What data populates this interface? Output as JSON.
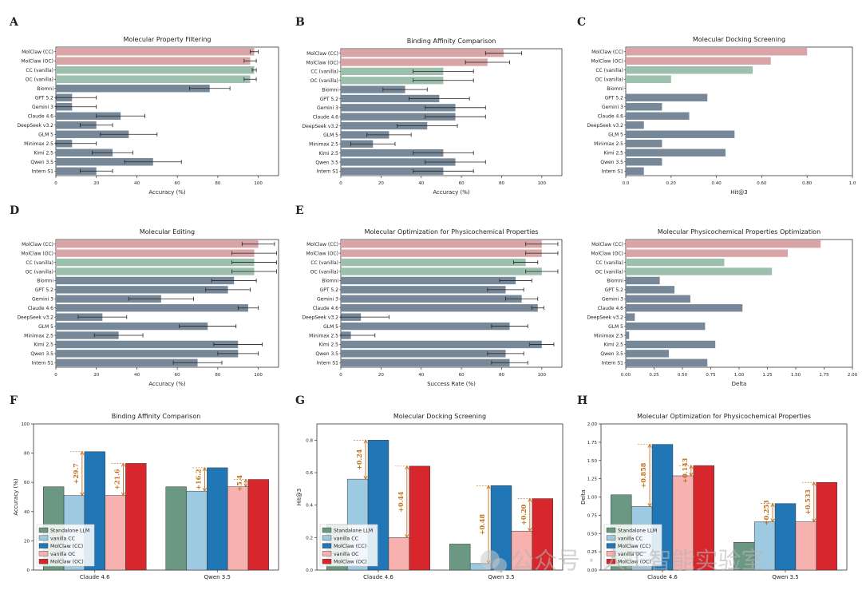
{
  "colors": {
    "mol": "#d8a4a6",
    "vanilla": "#9dbfad",
    "other": "#778899",
    "err": "#222222",
    "standalone": "#6b9882",
    "vanilla_cc": "#9ecae1",
    "molclaw_cc": "#2176b6",
    "vanilla_oc": "#f7b2b0",
    "molclaw_oc": "#d7262c",
    "ann": "#c2711a"
  },
  "icons": [
    "wechat-icon"
  ],
  "watermark": "公众号 · 人工智能实验室",
  "chart_data": [
    {
      "panel": "A",
      "type": "bar",
      "title": "Molecular Property Filtering",
      "xlabel": "Accuracy (%)",
      "xlim": [
        0,
        110
      ],
      "xticks": [
        0,
        20,
        40,
        60,
        80,
        100
      ],
      "categories": [
        "MolClaw (CC)",
        "MolClaw (OC)",
        "CC (vanilla)",
        "OC (vanilla)",
        "Biomni",
        "GPT 5.2",
        "Gemini 3",
        "Claude 4.6",
        "DeepSeek v3.2",
        "GLM 5",
        "Minimax 2.5",
        "Kimi 2.5",
        "Qwen 3.5",
        "Intern S1"
      ],
      "values": [
        98,
        96,
        98,
        96,
        76,
        8,
        8,
        32,
        20,
        36,
        8,
        28,
        48,
        20
      ],
      "errors": [
        2,
        3,
        1,
        3,
        10,
        12,
        12,
        12,
        8,
        14,
        12,
        10,
        14,
        8
      ]
    },
    {
      "panel": "B",
      "type": "bar",
      "title": "Binding Affinity Comparison",
      "xlabel": "Accuracy (%)",
      "xlim": [
        0,
        110
      ],
      "xticks": [
        0,
        20,
        40,
        60,
        80,
        100
      ],
      "categories": [
        "MolClaw (CC)",
        "MolClaw (OC)",
        "CC (vanilla)",
        "OC (vanilla)",
        "Biomni",
        "GPT 5.2",
        "Gemini 3",
        "Claude 4.6",
        "DeepSeek v3.2",
        "GLM 5",
        "Minimax 2.5",
        "Kimi 2.5",
        "Qwen 3.5",
        "Intern S1"
      ],
      "values": [
        81,
        73,
        51,
        51,
        32,
        49,
        57,
        57,
        43,
        24,
        16,
        51,
        57,
        51
      ],
      "errors": [
        9,
        11,
        15,
        15,
        11,
        15,
        15,
        15,
        15,
        11,
        11,
        15,
        15,
        15
      ]
    },
    {
      "panel": "C",
      "type": "bar",
      "title": "Molecular Docking Screening",
      "xlabel": "Hit@3",
      "xlim": [
        0,
        1
      ],
      "xticks": [
        0.0,
        0.2,
        0.4,
        0.6,
        0.8,
        1.0
      ],
      "categories": [
        "MolClaw (CC)",
        "MolClaw (OC)",
        "CC (vanilla)",
        "OC (vanilla)",
        "Biomni",
        "GPT 5.2",
        "Gemini 3",
        "Claude 4.6",
        "DeepSeek v3.2",
        "GLM 5",
        "Minimax 2.5",
        "Kimi 2.5",
        "Qwen 3.5",
        "Intern S1"
      ],
      "values": [
        0.8,
        0.64,
        0.56,
        0.2,
        0,
        0.36,
        0.16,
        0.28,
        0.08,
        0.48,
        0.16,
        0.44,
        0.16,
        0.08
      ],
      "errors": null
    },
    {
      "panel": "D",
      "type": "bar",
      "title": "Molecular Editing",
      "xlabel": "Accuracy (%)",
      "xlim": [
        0,
        110
      ],
      "xticks": [
        0,
        20,
        40,
        60,
        80,
        100
      ],
      "categories": [
        "MolClaw (CC)",
        "MolClaw (OC)",
        "CC (vanilla)",
        "OC (vanilla)",
        "Biomni",
        "GPT 5.2",
        "Gemini 3",
        "Claude 4.6",
        "DeepSeek v3.2",
        "GLM 5",
        "Minimax 2.5",
        "Kimi 2.5",
        "Qwen 3.5",
        "Intern S1"
      ],
      "values": [
        100,
        98,
        98,
        98,
        88,
        85,
        52,
        95,
        23,
        75,
        31,
        90,
        90,
        70
      ],
      "errors": [
        8,
        11,
        11,
        11,
        11,
        11,
        16,
        5,
        12,
        14,
        12,
        12,
        10,
        12
      ]
    },
    {
      "panel": "E",
      "type": "bar",
      "title": "Molecular Optimization for Physicochemical Properties",
      "xlabel": "Success Rate (%)",
      "xlim": [
        0,
        110
      ],
      "xticks": [
        0,
        20,
        40,
        60,
        80,
        100
      ],
      "categories": [
        "MolClaw (CC)",
        "MolClaw (OC)",
        "CC (vanilla)",
        "OC (vanilla)",
        "Biomni",
        "GPT 5.2",
        "Gemini 3",
        "Claude 4.6",
        "DeepSeek v3.2",
        "GLM 5",
        "Minimax 2.5",
        "Kimi 2.5",
        "Qwen 3.5",
        "Intern S1"
      ],
      "values": [
        100,
        100,
        92,
        100,
        87,
        82,
        90,
        98,
        10,
        84,
        5,
        100,
        82,
        84
      ],
      "errors": [
        8,
        8,
        6,
        8,
        8,
        9,
        8,
        3,
        14,
        9,
        12,
        6,
        9,
        9
      ]
    },
    {
      "panel": "E2",
      "type": "bar",
      "title": "Molecular Physicochemical Properties Optimization",
      "xlabel": "Delta",
      "xlim": [
        0,
        2
      ],
      "xticks": [
        0.0,
        0.25,
        0.5,
        0.75,
        1.0,
        1.25,
        1.5,
        1.75,
        2.0
      ],
      "categories": [
        "MolClaw (CC)",
        "MolClaw (OC)",
        "CC (vanilla)",
        "OC (vanilla)",
        "Biomni",
        "GPT 5.2",
        "Gemini 3",
        "Claude 4.6",
        "DeepSeek v3.2",
        "GLM 5",
        "Minimax 2.5",
        "Kimi 2.5",
        "Qwen 3.5",
        "Intern S1"
      ],
      "values": [
        1.72,
        1.43,
        0.87,
        1.29,
        0.3,
        0.43,
        0.57,
        1.03,
        0.08,
        0.7,
        0.03,
        0.79,
        0.38,
        0.72
      ],
      "errors": null
    },
    {
      "panel": "F",
      "type": "bar",
      "title": "Binding Affinity Comparison",
      "ylabel": "Accuracy (%)",
      "ylim": [
        0,
        100
      ],
      "yticks": [
        0,
        20,
        40,
        60,
        80,
        100
      ],
      "categories": [
        "Claude 4.6",
        "Qwen 3.5"
      ],
      "series": [
        {
          "name": "Standalone LLM",
          "values": [
            57,
            57
          ]
        },
        {
          "name": "vanilla CC",
          "values": [
            51,
            54
          ]
        },
        {
          "name": "MolClaw (CC)",
          "values": [
            81,
            70
          ]
        },
        {
          "name": "vanilla OC",
          "values": [
            51,
            57
          ]
        },
        {
          "name": "MolClaw (OC)",
          "values": [
            73,
            62
          ]
        }
      ],
      "annotations": [
        {
          "text": "+29.7",
          "group": 0,
          "from": 1,
          "to": 2
        },
        {
          "text": "+21.6",
          "group": 0,
          "from": 3,
          "to": 4
        },
        {
          "text": "+16.2",
          "group": 1,
          "from": 1,
          "to": 2
        },
        {
          "text": "+5.4",
          "group": 1,
          "from": 3,
          "to": 4
        }
      ]
    },
    {
      "panel": "G",
      "type": "bar",
      "title": "Molecular Docking Screening",
      "ylabel": "Hit@3",
      "ylim": [
        0,
        0.9
      ],
      "yticks": [
        0.0,
        0.2,
        0.4,
        0.6,
        0.8
      ],
      "categories": [
        "Claude 4.6",
        "Qwen 3.5"
      ],
      "series": [
        {
          "name": "Standalone LLM",
          "values": [
            0.28,
            0.16
          ]
        },
        {
          "name": "vanilla CC",
          "values": [
            0.56,
            0.04
          ]
        },
        {
          "name": "MolClaw (CC)",
          "values": [
            0.8,
            0.52
          ]
        },
        {
          "name": "vanilla OC",
          "values": [
            0.2,
            0.24
          ]
        },
        {
          "name": "MolClaw (OC)",
          "values": [
            0.64,
            0.44
          ]
        }
      ],
      "annotations": [
        {
          "text": "+0.24",
          "group": 0,
          "from": 1,
          "to": 2
        },
        {
          "text": "+0.44",
          "group": 0,
          "from": 3,
          "to": 4
        },
        {
          "text": "+0.48",
          "group": 1,
          "from": 1,
          "to": 2
        },
        {
          "text": "+0.20",
          "group": 1,
          "from": 3,
          "to": 4
        }
      ]
    },
    {
      "panel": "H",
      "type": "bar",
      "title": "Molecular Optimization for Physicochemical Properties",
      "ylabel": "Delta",
      "ylim": [
        0,
        2
      ],
      "yticks": [
        0.0,
        0.25,
        0.5,
        0.75,
        1.0,
        1.25,
        1.5,
        1.75,
        2.0
      ],
      "categories": [
        "Claude 4.6",
        "Qwen 3.5"
      ],
      "series": [
        {
          "name": "Standalone LLM",
          "values": [
            1.03,
            0.38
          ]
        },
        {
          "name": "vanilla CC",
          "values": [
            0.87,
            0.66
          ]
        },
        {
          "name": "MolClaw (CC)",
          "values": [
            1.72,
            0.91
          ]
        },
        {
          "name": "vanilla OC",
          "values": [
            1.29,
            0.66
          ]
        },
        {
          "name": "MolClaw (OC)",
          "values": [
            1.43,
            1.2
          ]
        }
      ],
      "annotations": [
        {
          "text": "+0.858",
          "group": 0,
          "from": 1,
          "to": 2
        },
        {
          "text": "+0.143",
          "group": 0,
          "from": 3,
          "to": 4
        },
        {
          "text": "+0.253",
          "group": 1,
          "from": 1,
          "to": 2
        },
        {
          "text": "+0.533",
          "group": 1,
          "from": 3,
          "to": 4
        }
      ]
    }
  ]
}
